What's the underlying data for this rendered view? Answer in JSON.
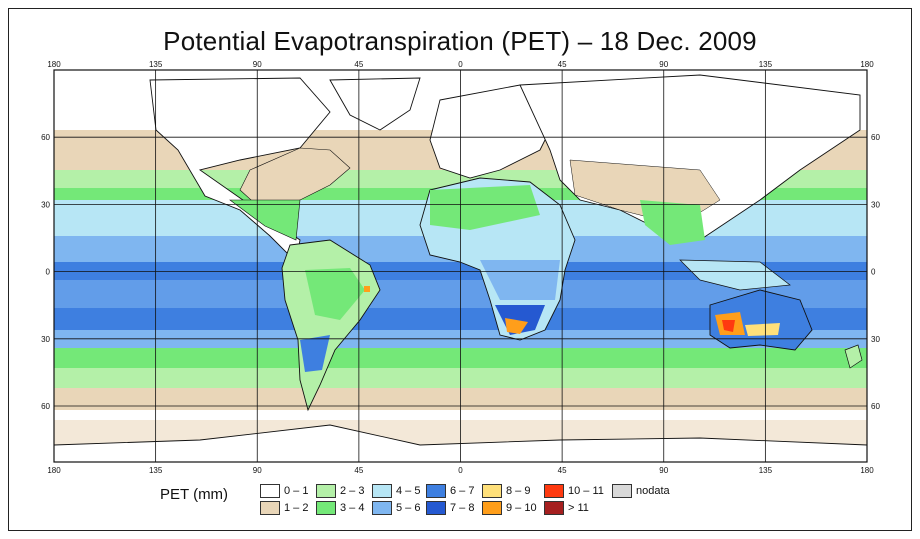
{
  "title": "Potential Evapotranspiration (PET) – 18 Dec. 2009",
  "axes": {
    "lon_ticks": [
      "180",
      "135",
      "90",
      "45",
      "0",
      "45",
      "90",
      "135",
      "180"
    ],
    "lat_ticks": [
      "60",
      "30",
      "0",
      "30",
      "60"
    ],
    "lon_values": [
      -180,
      -135,
      -90,
      -45,
      0,
      45,
      90,
      135,
      180
    ],
    "lat_values": [
      60,
      30,
      0,
      -30,
      -60
    ]
  },
  "legend": {
    "label": "PET (mm)",
    "items": [
      {
        "label": "0 – 1",
        "color": "#ffffff"
      },
      {
        "label": "1 – 2",
        "color": "#e9d6b8"
      },
      {
        "label": "2 – 3",
        "color": "#b4f0a8"
      },
      {
        "label": "3 – 4",
        "color": "#74e878"
      },
      {
        "label": "4 – 5",
        "color": "#b7e6f5"
      },
      {
        "label": "5 – 6",
        "color": "#7fb6f0"
      },
      {
        "label": "6 – 7",
        "color": "#3e7fe0"
      },
      {
        "label": "7 – 8",
        "color": "#2559d1"
      },
      {
        "label": "8 – 9",
        "color": "#ffe07a"
      },
      {
        "label": "9 – 10",
        "color": "#ff9e1a"
      },
      {
        "label": "10 – 11",
        "color": "#ff3a10"
      },
      {
        "label": "> 11",
        "color": "#a51f1f"
      },
      {
        "label": "nodata",
        "color": "#d9d9d9"
      }
    ]
  }
}
